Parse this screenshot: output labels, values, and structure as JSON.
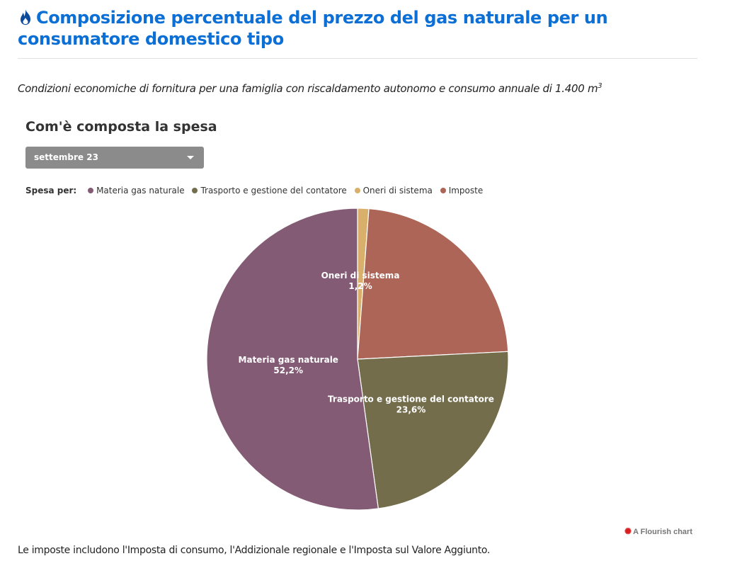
{
  "header": {
    "title": "Composizione percentuale del prezzo del gas naturale per un consumatore domestico tipo",
    "title_color": "#0b6fd6",
    "icon": "flame-icon"
  },
  "subtitle": {
    "text": "Condizioni economiche di fornitura per una famiglia con riscaldamento autonomo e consumo annuale di 1.400 m",
    "superscript": "3"
  },
  "chart": {
    "heading": "Com'è composta la spesa",
    "selector": {
      "selected": "settembre 23",
      "icon": "caret-down-icon"
    },
    "legend_title": "Spesa per:"
  },
  "chart_data": {
    "type": "pie",
    "period": "settembre 23",
    "title": "Com'è composta la spesa",
    "legend_position": "top-left",
    "categories": [
      "Materia gas naturale",
      "Trasporto e gestione del contatore",
      "Oneri di sistema",
      "Imposte"
    ],
    "values": [
      52.2,
      23.6,
      1.2,
      23.0
    ],
    "value_labels": [
      "52,2%",
      "23,6%",
      "1,2%",
      ""
    ],
    "colors": [
      "#835b74",
      "#736d4b",
      "#d9b06b",
      "#ac6556"
    ]
  },
  "credit": {
    "text": "A Flourish chart",
    "icon": "flourish-logo-icon"
  },
  "footnote": "Le imposte includono l'Imposta di consumo, l'Addizionale regionale e l'Imposta sul Valore Aggiunto."
}
